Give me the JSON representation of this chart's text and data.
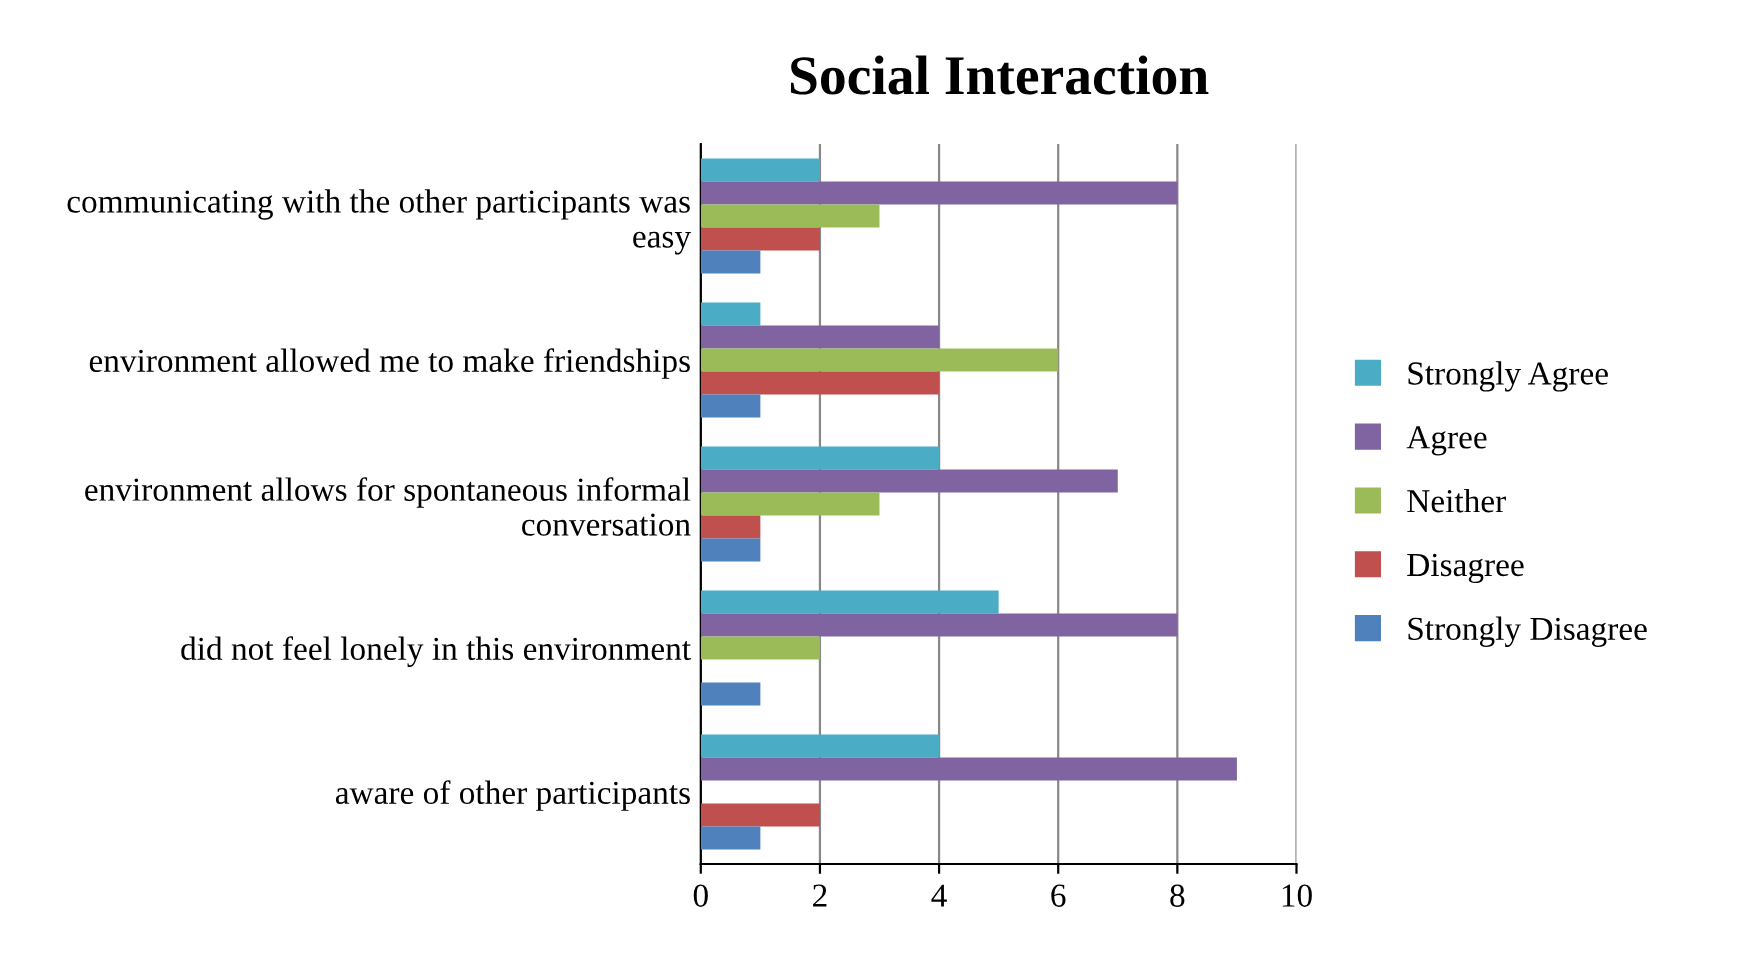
{
  "chart_data": {
    "type": "bar",
    "orientation": "horizontal",
    "title": "Social Interaction",
    "categories": [
      "communicating with the other participants was easy",
      "environment allowed me to make friendships",
      "environment allows for spontaneous informal conversation",
      "did not feel lonely in this environment",
      "aware of other participants"
    ],
    "series": [
      {
        "name": "Strongly Agree",
        "color": "#4bacc6",
        "values": [
          2,
          1,
          4,
          5,
          4
        ]
      },
      {
        "name": "Agree",
        "color": "#8064a2",
        "values": [
          8,
          4,
          7,
          8,
          9
        ]
      },
      {
        "name": "Neither",
        "color": "#9bbb59",
        "values": [
          3,
          6,
          3,
          2,
          0
        ]
      },
      {
        "name": "Disagree",
        "color": "#c0504d",
        "values": [
          2,
          4,
          1,
          0,
          2
        ]
      },
      {
        "name": "Strongly Disagree",
        "color": "#4f81bd",
        "values": [
          1,
          1,
          1,
          1,
          1
        ]
      }
    ],
    "xlim": [
      0,
      10
    ],
    "xticks": [
      0,
      2,
      4,
      6,
      8,
      10
    ],
    "grid": "x",
    "legend": "right"
  }
}
